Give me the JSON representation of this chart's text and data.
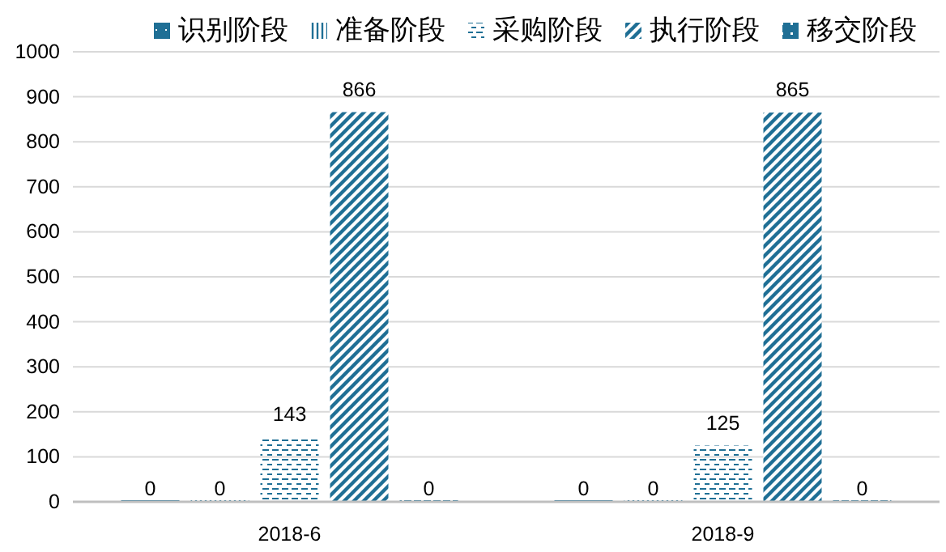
{
  "chart_data": {
    "type": "bar",
    "categories": [
      "2018-6",
      "2018-9"
    ],
    "series": [
      {
        "name": "识别阶段",
        "color": "#1f6f95",
        "values": [
          0,
          0
        ]
      },
      {
        "name": "准备阶段",
        "color": "#1f6f95",
        "values": [
          0,
          0
        ]
      },
      {
        "name": "采购阶段",
        "color": "#1f6f95",
        "values": [
          143,
          125
        ]
      },
      {
        "name": "执行阶段",
        "color": "#1f6f95",
        "values": [
          866,
          865
        ]
      },
      {
        "name": "移交阶段",
        "color": "#1f6f95",
        "values": [
          0,
          0
        ]
      }
    ],
    "ylim": [
      0,
      1000
    ],
    "yticks": [
      0,
      100,
      200,
      300,
      400,
      500,
      600,
      700,
      800,
      900,
      1000
    ],
    "grid": "y",
    "legend": "top",
    "data_labels": true
  }
}
